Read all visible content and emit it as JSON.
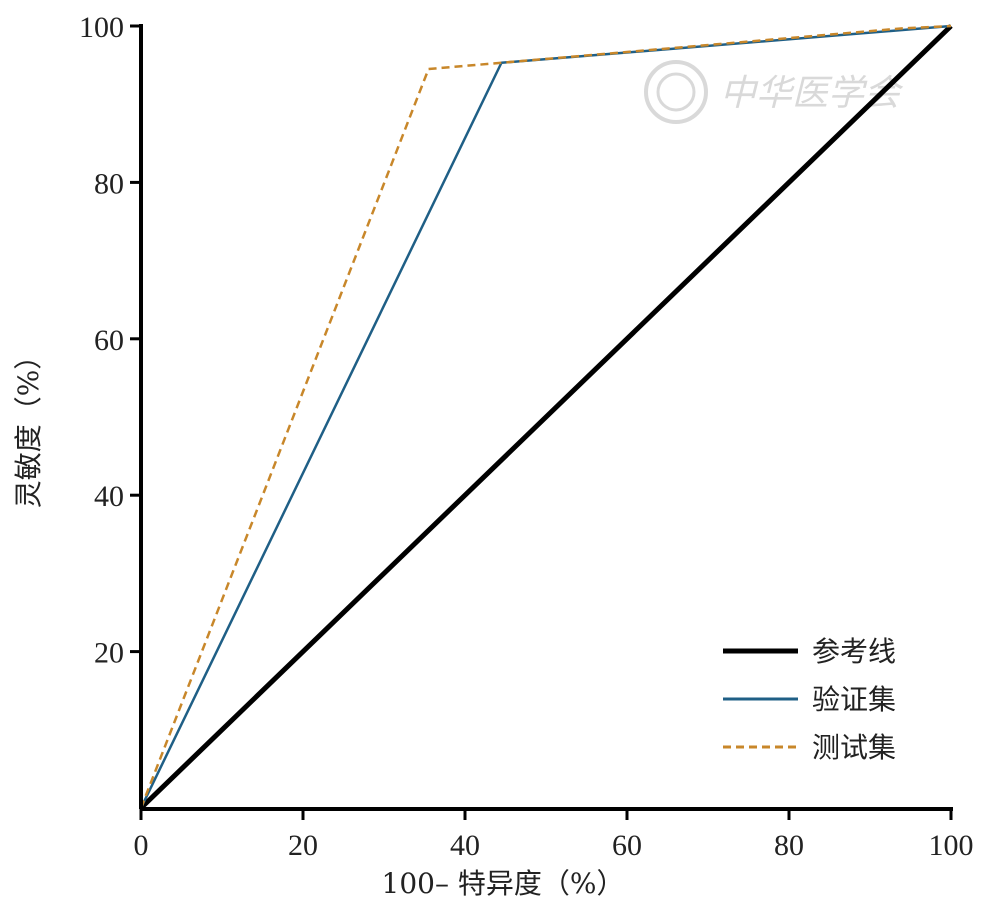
{
  "chart_data": {
    "type": "line",
    "title": "",
    "xlabel": "100– 特异度（%）",
    "ylabel": "灵敏度（%）",
    "xlim": [
      0,
      100
    ],
    "ylim": [
      0,
      100
    ],
    "x_ticks": [
      "0",
      "20",
      "40",
      "60",
      "80",
      "100"
    ],
    "y_ticks": [
      "20",
      "40",
      "60",
      "80",
      "100"
    ],
    "grid": false,
    "legend_position": "bottom-right",
    "series": [
      {
        "name": "参考线",
        "color": "#000000",
        "style": "solid",
        "x": [
          0,
          100
        ],
        "y": [
          0,
          100
        ]
      },
      {
        "name": "验证集",
        "color": "#1f5f86",
        "style": "solid",
        "x": [
          0,
          44.5,
          100
        ],
        "y": [
          0,
          95.3,
          100
        ]
      },
      {
        "name": "测试集",
        "color": "#c8872a",
        "style": "dashed",
        "x": [
          0,
          35.5,
          44.5,
          94,
          100
        ],
        "y": [
          0,
          94.5,
          95.3,
          99.7,
          100
        ]
      }
    ],
    "watermark": "中华医学会"
  }
}
